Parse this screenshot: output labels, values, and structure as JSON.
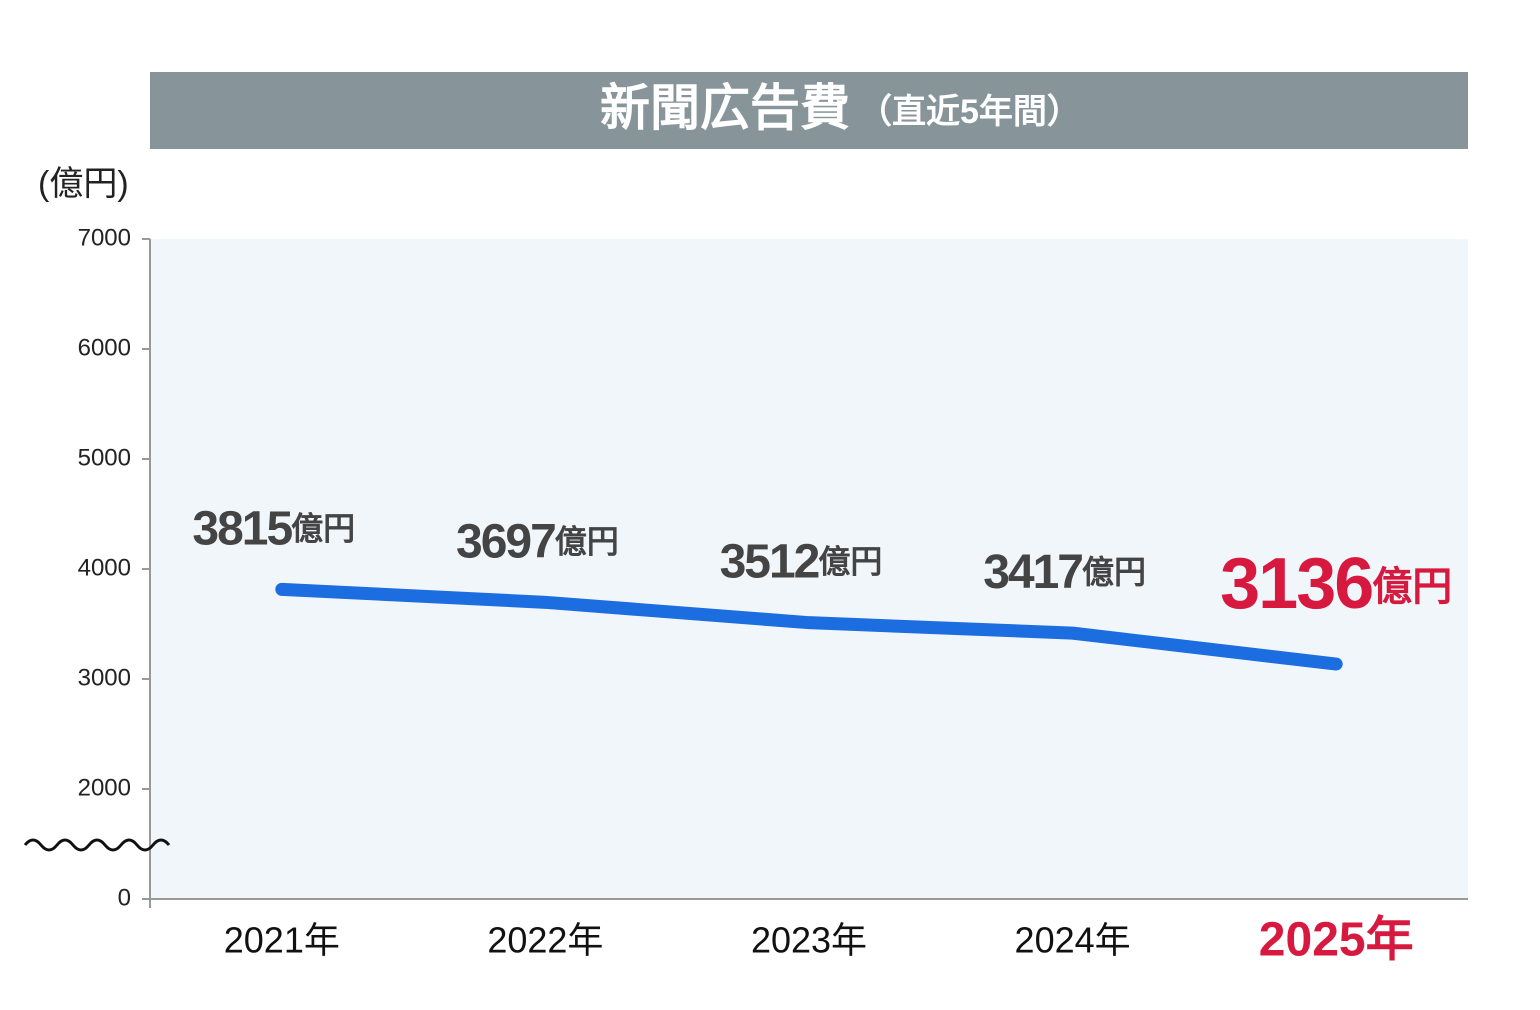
{
  "chart_data": {
    "type": "line",
    "title": "新聞広告費",
    "subtitle": "（直近5年間）",
    "y_label": "(億円)",
    "categories": [
      "2021年",
      "2022年",
      "2023年",
      "2024年",
      "2025年"
    ],
    "series": [
      {
        "color": "#1b6de0",
        "values": [
          3815,
          3697,
          3512,
          3417,
          3136
        ],
        "value_labels": [
          "3815億円",
          "3697億円",
          "3512億円",
          "3417億円",
          "3136億円"
        ]
      }
    ],
    "label_colors": [
      "#444444",
      "#444444",
      "#444444",
      "#444444",
      "#d7193f"
    ],
    "ylim": [
      0,
      7000
    ],
    "yticks": [
      0,
      2000,
      3000,
      4000,
      5000,
      6000,
      7000
    ],
    "axis_break": true,
    "grid": false
  }
}
